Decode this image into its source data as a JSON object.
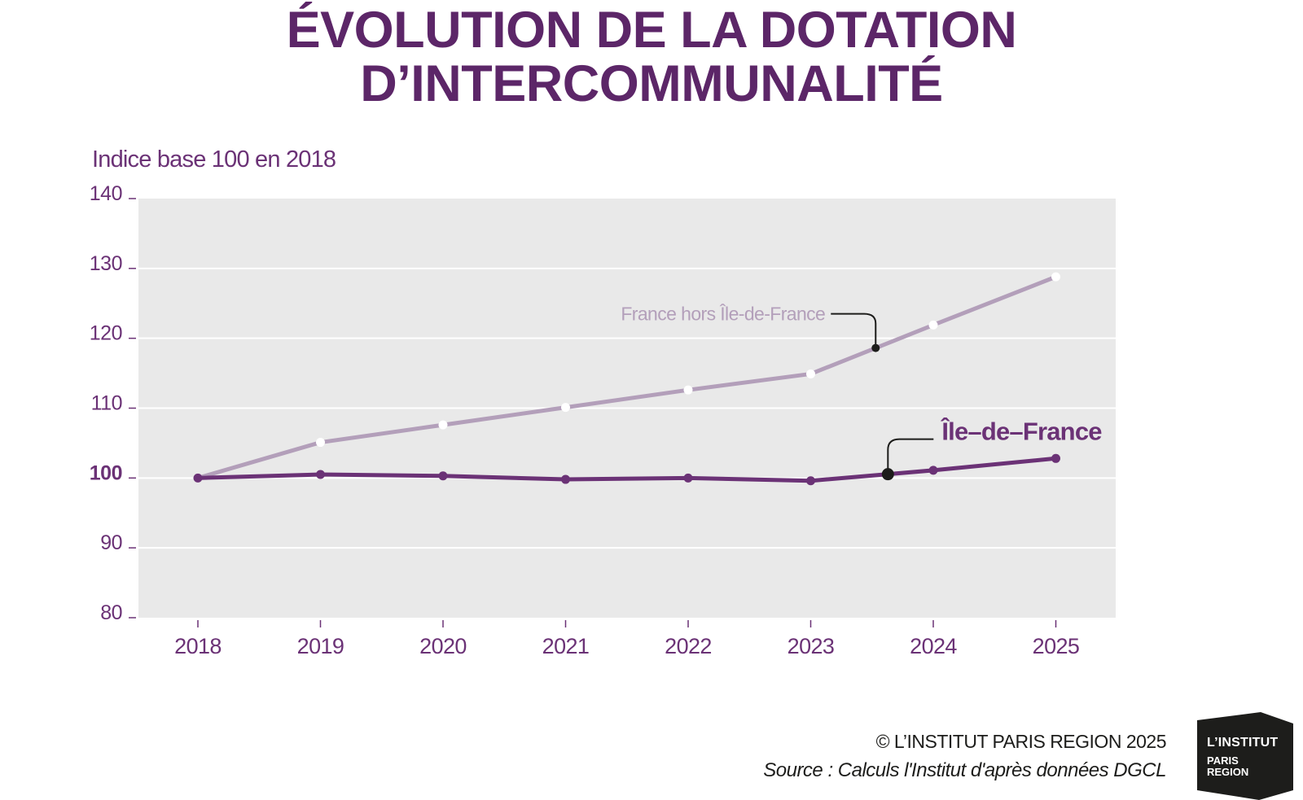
{
  "title_line1": "ÉVOLUTION DE LA DOTATION",
  "title_line2": "D’INTERCOMMUNALITÉ",
  "footer": {
    "copyright": "© L’INSTITUT PARIS REGION 2025",
    "source": "Source : Calculs l'Institut d'après données DGCL"
  },
  "logo": {
    "line1": "L’INSTITUT",
    "line2": "PARIS",
    "line3": "REGION"
  },
  "colors": {
    "idf": "#6b3276",
    "france": "#b39fba",
    "plot_bg": "#e9e9e9",
    "title": "#5c2668"
  },
  "chart_data": {
    "type": "line",
    "title": "",
    "ylabel": "Indice base 100 en 2018",
    "xlabel": "",
    "categories": [
      "2018",
      "2019",
      "2020",
      "2021",
      "2022",
      "2023",
      "2024",
      "2025"
    ],
    "ylim": [
      80,
      140
    ],
    "yticks": [
      80,
      90,
      100,
      110,
      120,
      130,
      140
    ],
    "grid": true,
    "series": [
      {
        "name": "France hors Île-de-France",
        "values": [
          100,
          105.1,
          107.6,
          110.1,
          112.6,
          114.9,
          121.9,
          128.8
        ]
      },
      {
        "name": "Île–de–France",
        "values": [
          100,
          100.5,
          100.3,
          99.8,
          100,
          99.6,
          101.1,
          102.8
        ]
      }
    ]
  }
}
